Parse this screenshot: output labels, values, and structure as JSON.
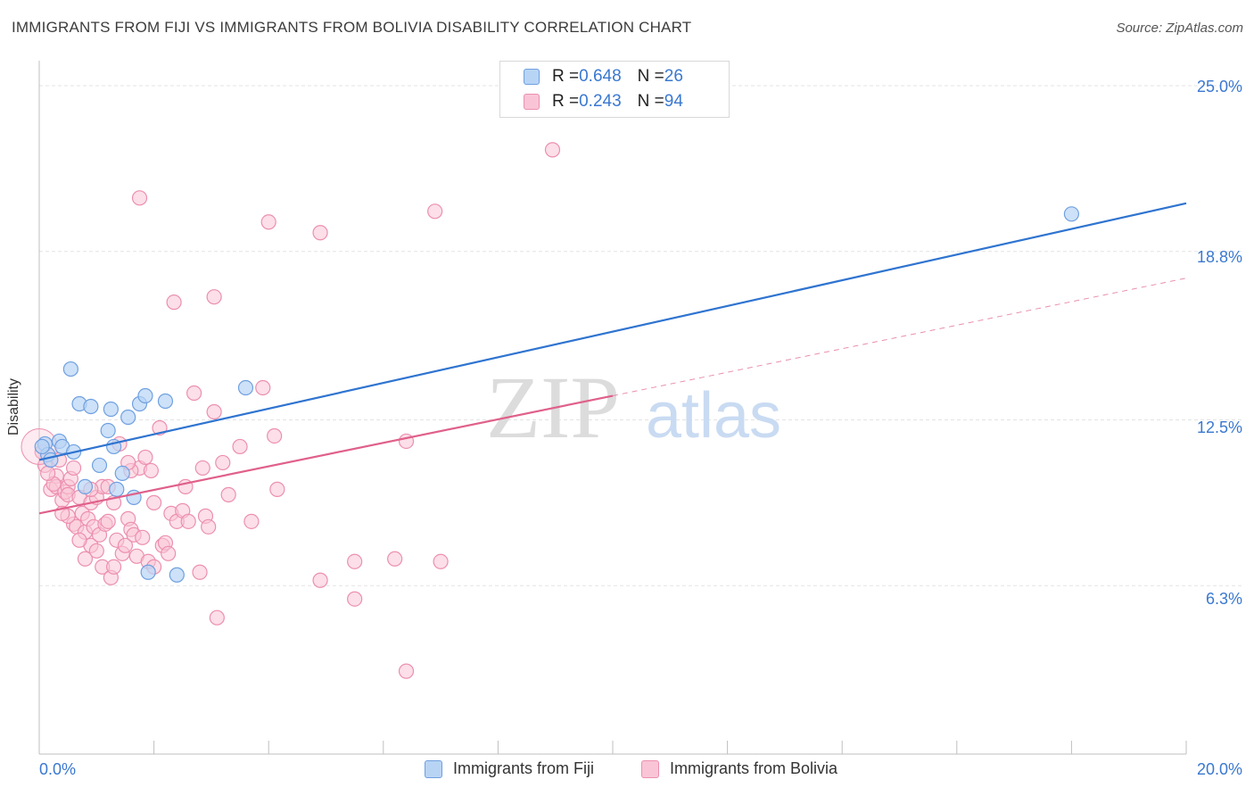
{
  "title": "IMMIGRANTS FROM FIJI VS IMMIGRANTS FROM BOLIVIA DISABILITY CORRELATION CHART",
  "source": "Source: ZipAtlas.com",
  "watermark": {
    "zip": "ZIP",
    "atlas": "atlas"
  },
  "colors": {
    "fiji_fill": "#b8d4f5",
    "fiji_stroke": "#6fa0e0",
    "fiji_line": "#2f74d0",
    "bolivia_fill": "#f9c5d6",
    "bolivia_stroke": "#ec8fae",
    "bolivia_line": "#e0608a",
    "axis_text": "#3a78d0",
    "grid": "#e3e3e3"
  },
  "legend": {
    "rows": [
      {
        "r_label": "R = ",
        "r_value": "0.648",
        "n_label": "N = ",
        "n_value": "26"
      },
      {
        "r_label": "R = ",
        "r_value": "0.243",
        "n_label": "N = ",
        "n_value": "94"
      }
    ]
  },
  "chart_data": {
    "type": "scatter",
    "title": "IMMIGRANTS FROM FIJI VS IMMIGRANTS FROM BOLIVIA DISABILITY CORRELATION CHART",
    "xlabel": "",
    "ylabel": "Disability",
    "xlim": [
      0,
      20
    ],
    "ylim": [
      0,
      25.6
    ],
    "x_tick_labels": [
      "0.0%",
      "20.0%"
    ],
    "y_ticks": [
      6.3,
      12.5,
      18.8,
      25.0
    ],
    "y_tick_labels": [
      "6.3%",
      "12.5%",
      "18.8%",
      "25.0%"
    ],
    "grid": "horizontal dashed",
    "legend_position": "top-center",
    "series": [
      {
        "name": "Immigrants from Fiji",
        "r": 0.648,
        "n": 26,
        "trend": {
          "x0": 0,
          "y0": 11.0,
          "x1": 20,
          "y1": 20.6
        },
        "points": [
          [
            0.1,
            11.6
          ],
          [
            0.15,
            11.2
          ],
          [
            0.2,
            11.0
          ],
          [
            0.35,
            11.7
          ],
          [
            0.4,
            11.5
          ],
          [
            0.55,
            14.4
          ],
          [
            0.6,
            11.3
          ],
          [
            0.7,
            13.1
          ],
          [
            0.8,
            10.0
          ],
          [
            0.9,
            13.0
          ],
          [
            1.05,
            10.8
          ],
          [
            1.2,
            12.1
          ],
          [
            1.25,
            12.9
          ],
          [
            1.3,
            11.5
          ],
          [
            1.35,
            9.9
          ],
          [
            1.45,
            10.5
          ],
          [
            1.55,
            12.6
          ],
          [
            1.65,
            9.6
          ],
          [
            1.75,
            13.1
          ],
          [
            1.85,
            13.4
          ],
          [
            1.9,
            6.8
          ],
          [
            2.2,
            13.2
          ],
          [
            2.4,
            6.7
          ],
          [
            3.6,
            13.7
          ],
          [
            18.0,
            20.2
          ],
          [
            0.05,
            11.5
          ]
        ]
      },
      {
        "name": "Immigrants from Bolivia",
        "r": 0.243,
        "n": 94,
        "trend": {
          "x0": 0,
          "y0": 9.0,
          "x1": 10,
          "y1": 13.4
        },
        "trend_dashed": {
          "x0": 10,
          "y0": 13.4,
          "x1": 20,
          "y1": 17.8
        },
        "points": [
          [
            0.05,
            11.3
          ],
          [
            0.1,
            10.8
          ],
          [
            0.15,
            11.2
          ],
          [
            0.2,
            9.9
          ],
          [
            0.3,
            10.4
          ],
          [
            0.3,
            10.0
          ],
          [
            0.35,
            11.0
          ],
          [
            0.4,
            9.5
          ],
          [
            0.45,
            9.8
          ],
          [
            0.5,
            10.0
          ],
          [
            0.5,
            9.7
          ],
          [
            0.55,
            10.3
          ],
          [
            0.6,
            10.7
          ],
          [
            0.6,
            8.6
          ],
          [
            0.65,
            8.5
          ],
          [
            0.7,
            9.6
          ],
          [
            0.75,
            9.0
          ],
          [
            0.8,
            8.3
          ],
          [
            0.85,
            8.8
          ],
          [
            0.9,
            7.8
          ],
          [
            0.9,
            9.4
          ],
          [
            0.95,
            8.5
          ],
          [
            1.0,
            9.6
          ],
          [
            1.05,
            8.2
          ],
          [
            1.1,
            10.0
          ],
          [
            1.1,
            7.0
          ],
          [
            1.15,
            8.6
          ],
          [
            1.2,
            8.7
          ],
          [
            1.25,
            6.6
          ],
          [
            1.3,
            9.4
          ],
          [
            1.35,
            8.0
          ],
          [
            1.4,
            11.6
          ],
          [
            1.45,
            7.5
          ],
          [
            1.5,
            7.8
          ],
          [
            1.55,
            8.8
          ],
          [
            1.6,
            8.4
          ],
          [
            1.65,
            8.2
          ],
          [
            1.7,
            7.4
          ],
          [
            1.75,
            10.7
          ],
          [
            1.75,
            20.8
          ],
          [
            1.8,
            8.1
          ],
          [
            1.85,
            11.1
          ],
          [
            1.9,
            7.2
          ],
          [
            1.95,
            10.6
          ],
          [
            2.0,
            7.0
          ],
          [
            2.1,
            12.2
          ],
          [
            2.15,
            7.8
          ],
          [
            2.2,
            7.9
          ],
          [
            2.3,
            9.0
          ],
          [
            2.35,
            16.9
          ],
          [
            2.4,
            8.7
          ],
          [
            2.5,
            9.1
          ],
          [
            2.55,
            10.0
          ],
          [
            2.6,
            8.7
          ],
          [
            2.7,
            13.5
          ],
          [
            2.8,
            6.8
          ],
          [
            2.85,
            10.7
          ],
          [
            2.9,
            8.9
          ],
          [
            2.95,
            8.5
          ],
          [
            3.05,
            12.8
          ],
          [
            3.05,
            17.1
          ],
          [
            3.1,
            5.1
          ],
          [
            3.2,
            10.9
          ],
          [
            3.3,
            9.7
          ],
          [
            3.5,
            11.5
          ],
          [
            3.7,
            8.7
          ],
          [
            3.9,
            13.7
          ],
          [
            4.0,
            19.9
          ],
          [
            4.1,
            11.9
          ],
          [
            4.15,
            9.9
          ],
          [
            4.9,
            19.5
          ],
          [
            4.9,
            6.5
          ],
          [
            5.5,
            7.2
          ],
          [
            5.5,
            5.8
          ],
          [
            6.2,
            7.3
          ],
          [
            6.4,
            11.7
          ],
          [
            6.4,
            3.1
          ],
          [
            6.9,
            20.3
          ],
          [
            7.0,
            7.2
          ],
          [
            8.95,
            22.6
          ],
          [
            0.5,
            8.9
          ],
          [
            0.9,
            9.9
          ],
          [
            1.3,
            7.0
          ],
          [
            1.0,
            7.6
          ],
          [
            1.6,
            10.6
          ],
          [
            0.25,
            10.1
          ],
          [
            0.7,
            8.0
          ],
          [
            1.2,
            10.0
          ],
          [
            0.4,
            9.0
          ],
          [
            0.8,
            7.3
          ],
          [
            2.0,
            9.4
          ],
          [
            1.55,
            10.9
          ],
          [
            2.25,
            7.5
          ],
          [
            0.15,
            10.5
          ]
        ]
      }
    ]
  },
  "bottom_legend": [
    {
      "label": "Immigrants from Fiji"
    },
    {
      "label": "Immigrants from Bolivia"
    }
  ]
}
